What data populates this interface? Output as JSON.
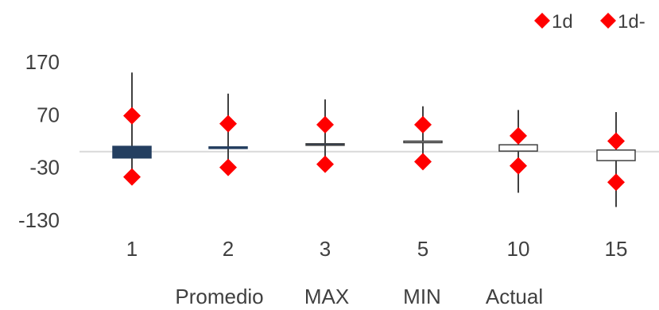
{
  "chart_data": {
    "type": "boxplot",
    "categories": [
      "1",
      "2",
      "3",
      "5",
      "10",
      "15"
    ],
    "ylim": [
      -130,
      170
    ],
    "yticks": [
      170,
      70,
      -30,
      -130
    ],
    "reference_line": 0,
    "whiskers": [
      {
        "low": -60,
        "high": 150
      },
      {
        "low": -45,
        "high": 110
      },
      {
        "low": -37,
        "high": 99
      },
      {
        "low": -30,
        "high": 86
      },
      {
        "low": -78,
        "high": 79
      },
      {
        "low": -105,
        "high": 75
      }
    ],
    "boxes": [
      {
        "low": -12,
        "high": 10
      },
      {
        "low": 6,
        "high": 9
      },
      {
        "low": 14,
        "high": 15
      },
      {
        "low": 17,
        "high": 20
      },
      {
        "low": 1,
        "high": 13
      },
      {
        "low": -17,
        "high": 3
      }
    ],
    "series": [
      {
        "name": "1d",
        "marker": "diamond",
        "color": "#ff0000",
        "values": [
          68,
          53,
          51,
          51,
          30,
          20
        ]
      },
      {
        "name": "1d-",
        "marker": "diamond",
        "color": "#ff0000",
        "values": [
          -48,
          -30,
          -24,
          -19,
          -27,
          -58
        ]
      }
    ],
    "box_colors": [
      "#243f60",
      "#243f60",
      "#404040",
      "#404040",
      "#404040",
      "#404040"
    ],
    "box_fills": [
      "#243f60",
      "#243f60",
      "#243f60",
      "#bfbfbf",
      "#ffffff",
      "#ffffff"
    ],
    "axis_line_color": "#d9d9d9",
    "second_row_labels": [
      "Promedio",
      "MAX",
      "MIN",
      "Actual"
    ],
    "legend": {
      "position": "top-right",
      "entries": [
        "1d",
        "1d-"
      ]
    }
  }
}
